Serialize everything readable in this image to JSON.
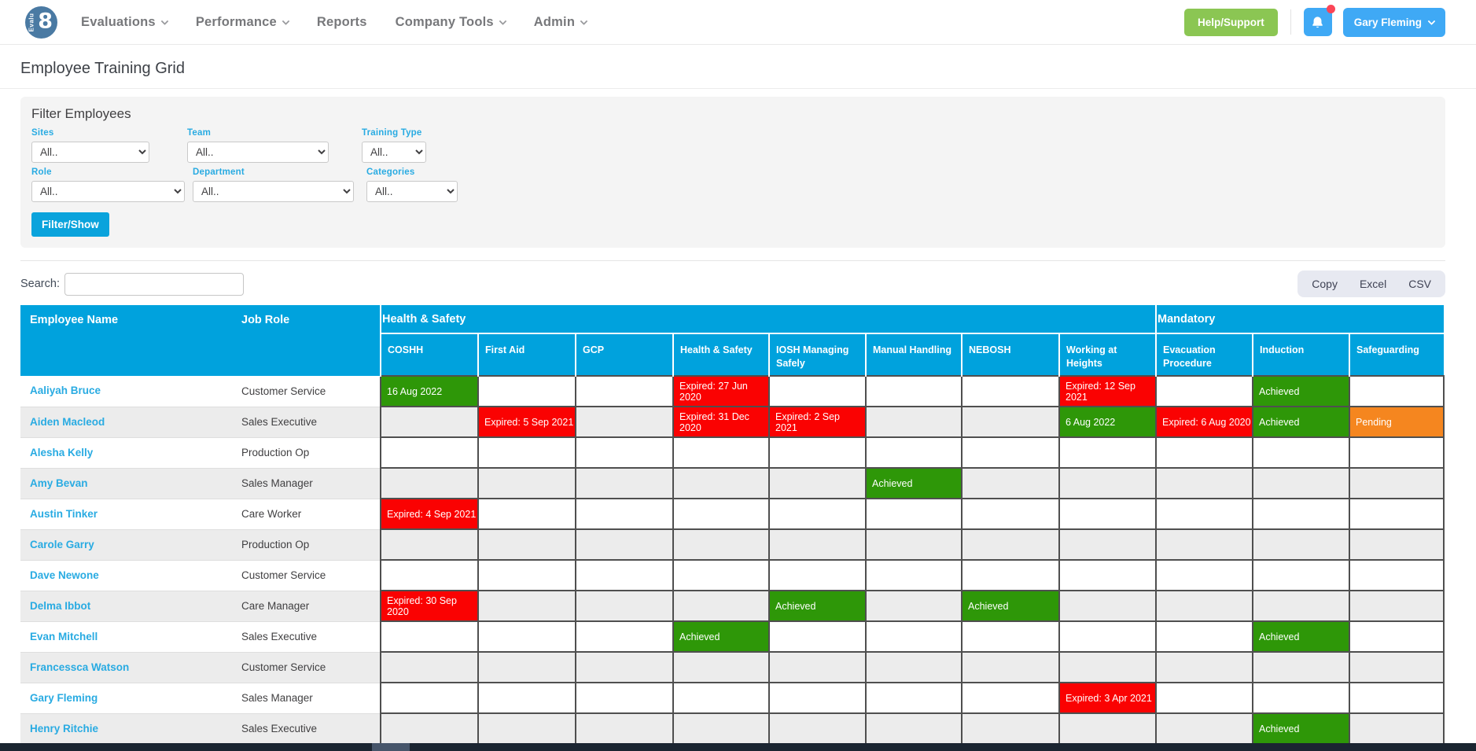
{
  "header": {
    "logo": {
      "text_vertical": "Evalu",
      "text_number": "8"
    },
    "nav": [
      {
        "label": "Evaluations",
        "has_dropdown": true
      },
      {
        "label": "Performance",
        "has_dropdown": true
      },
      {
        "label": "Reports",
        "has_dropdown": false
      },
      {
        "label": "Company Tools",
        "has_dropdown": true
      },
      {
        "label": "Admin",
        "has_dropdown": true
      }
    ],
    "help_button": "Help/Support",
    "notification_icon": "bell-icon",
    "user_button": "Gary Fleming"
  },
  "page": {
    "title": "Employee Training Grid"
  },
  "filters": {
    "heading": "Filter Employees",
    "fields": [
      {
        "label": "Sites",
        "value": "All.."
      },
      {
        "label": "Team",
        "value": "All.."
      },
      {
        "label": "Training Type",
        "value": "All.."
      },
      {
        "label": "Role",
        "value": "All.."
      },
      {
        "label": "Department",
        "value": "All.."
      },
      {
        "label": "Categories",
        "value": "All.."
      }
    ],
    "submit_label": "Filter/Show"
  },
  "toolbar": {
    "search_label": "Search:",
    "search_value": "",
    "export_buttons": [
      "Copy",
      "Excel",
      "CSV"
    ]
  },
  "colors": {
    "header_blue": "#00a2dd",
    "link_blue": "#29abe2",
    "help_green": "#8bc653",
    "user_blue": "#3fa9f5",
    "filter_button_blue": "#0aa3dc",
    "notification_dot": "#fb4557"
  },
  "grid": {
    "fixed_columns": [
      "Employee Name",
      "Job Role"
    ],
    "groups": [
      {
        "label": "Health & Safety",
        "columns": [
          "COSHH",
          "First Aid",
          "GCP",
          "Health & Safety",
          "IOSH Managing Safely",
          "Manual Handling",
          "NEBOSH",
          "Working at Heights"
        ]
      },
      {
        "label": "Mandatory",
        "columns": [
          "Evacuation Procedure",
          "Induction",
          "Safeguarding"
        ]
      }
    ],
    "status_colors": {
      "achieved": "#2e9708",
      "expired": "#fa0202",
      "pending": "#f5861f"
    },
    "rows": [
      {
        "name": "Aaliyah Bruce",
        "role": "Customer Service",
        "cells": [
          {
            "text": "16 Aug 2022",
            "status": "achieved"
          },
          null,
          null,
          {
            "text": "Expired: 27 Jun 2020",
            "status": "expired"
          },
          null,
          null,
          null,
          {
            "text": "Expired: 12 Sep 2021",
            "status": "expired"
          },
          null,
          {
            "text": "Achieved",
            "status": "achieved"
          },
          null
        ]
      },
      {
        "name": "Aiden Macleod",
        "role": "Sales Executive",
        "cells": [
          null,
          {
            "text": "Expired: 5 Sep 2021",
            "status": "expired"
          },
          null,
          {
            "text": "Expired: 31 Dec 2020",
            "status": "expired"
          },
          {
            "text": "Expired: 2 Sep 2021",
            "status": "expired"
          },
          null,
          null,
          {
            "text": "6 Aug 2022",
            "status": "achieved"
          },
          {
            "text": "Expired: 6 Aug 2020",
            "status": "expired"
          },
          {
            "text": "Achieved",
            "status": "achieved"
          },
          {
            "text": "Pending",
            "status": "pending"
          }
        ]
      },
      {
        "name": "Alesha Kelly",
        "role": "Production Op",
        "cells": [
          null,
          null,
          null,
          null,
          null,
          null,
          null,
          null,
          null,
          null,
          null
        ]
      },
      {
        "name": "Amy Bevan",
        "role": "Sales Manager",
        "cells": [
          null,
          null,
          null,
          null,
          null,
          {
            "text": "Achieved",
            "status": "achieved"
          },
          null,
          null,
          null,
          null,
          null
        ]
      },
      {
        "name": "Austin Tinker",
        "role": "Care Worker",
        "cells": [
          {
            "text": "Expired: 4 Sep 2021",
            "status": "expired"
          },
          null,
          null,
          null,
          null,
          null,
          null,
          null,
          null,
          null,
          null
        ]
      },
      {
        "name": "Carole Garry",
        "role": "Production Op",
        "cells": [
          null,
          null,
          null,
          null,
          null,
          null,
          null,
          null,
          null,
          null,
          null
        ]
      },
      {
        "name": "Dave Newone",
        "role": "Customer Service",
        "cells": [
          null,
          null,
          null,
          null,
          null,
          null,
          null,
          null,
          null,
          null,
          null
        ]
      },
      {
        "name": "Delma Ibbot",
        "role": "Care Manager",
        "cells": [
          {
            "text": "Expired: 30 Sep 2020",
            "status": "expired"
          },
          null,
          null,
          null,
          {
            "text": "Achieved",
            "status": "achieved"
          },
          null,
          {
            "text": "Achieved",
            "status": "achieved"
          },
          null,
          null,
          null,
          null
        ]
      },
      {
        "name": "Evan Mitchell",
        "role": "Sales Executive",
        "cells": [
          null,
          null,
          null,
          {
            "text": "Achieved",
            "status": "achieved"
          },
          null,
          null,
          null,
          null,
          null,
          {
            "text": "Achieved",
            "status": "achieved"
          },
          null
        ]
      },
      {
        "name": "Francessca Watson",
        "role": "Customer Service",
        "cells": [
          null,
          null,
          null,
          null,
          null,
          null,
          null,
          null,
          null,
          null,
          null
        ]
      },
      {
        "name": "Gary Fleming",
        "role": "Sales Manager",
        "cells": [
          null,
          null,
          null,
          null,
          null,
          null,
          null,
          {
            "text": "Expired: 3 Apr 2021",
            "status": "expired"
          },
          null,
          null,
          null
        ]
      },
      {
        "name": "Henry Ritchie",
        "role": "Sales Executive",
        "cells": [
          null,
          null,
          null,
          null,
          null,
          null,
          null,
          null,
          null,
          {
            "text": "Achieved",
            "status": "achieved"
          },
          null
        ]
      }
    ]
  }
}
